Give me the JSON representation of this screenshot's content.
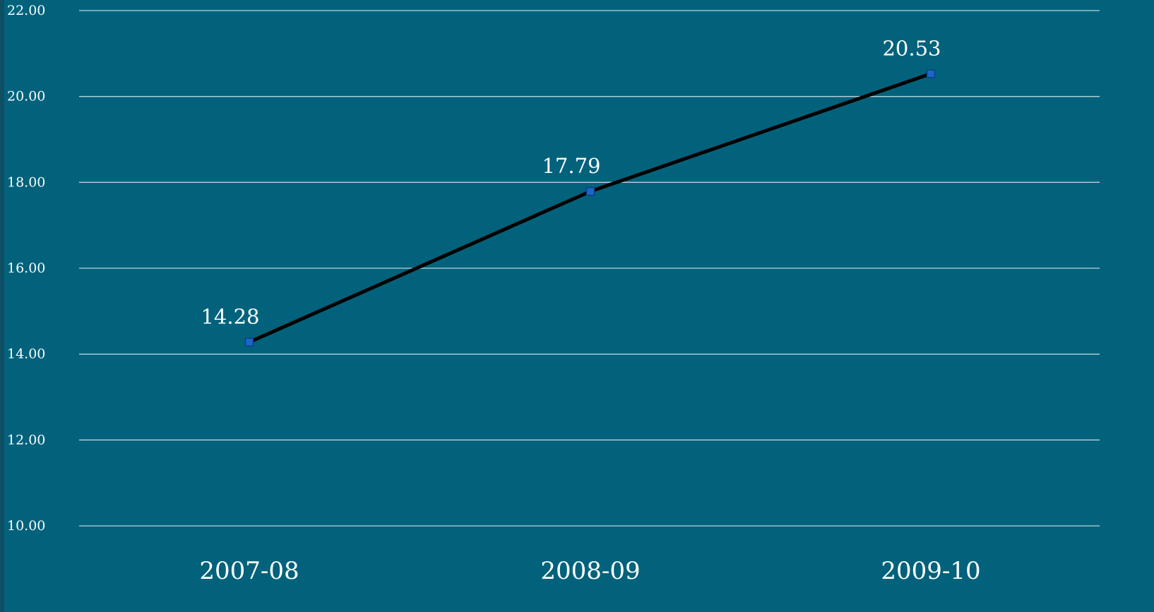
{
  "chart_data": {
    "type": "line",
    "title": "",
    "xlabel": "",
    "ylabel": "",
    "categories": [
      "2007-08",
      "2008-09",
      "2009-10"
    ],
    "series": [
      {
        "values": [
          14.28,
          17.79,
          20.53
        ]
      }
    ],
    "data_labels": [
      "14.28",
      "17.79",
      "20.53"
    ],
    "ylim": [
      10,
      22
    ],
    "yticks": [
      10,
      12,
      14,
      16,
      18,
      20,
      22
    ],
    "ytick_labels": [
      "10.00",
      "12.00",
      "14.00",
      "16.00",
      "18.00",
      "20.00",
      "22.00"
    ],
    "grid": true,
    "legend": "none",
    "colors": {
      "background": "#02627c",
      "gridline": "#b9d3da",
      "line": "#000000",
      "marker": "#1a66c8",
      "text": "#ffffff"
    }
  }
}
